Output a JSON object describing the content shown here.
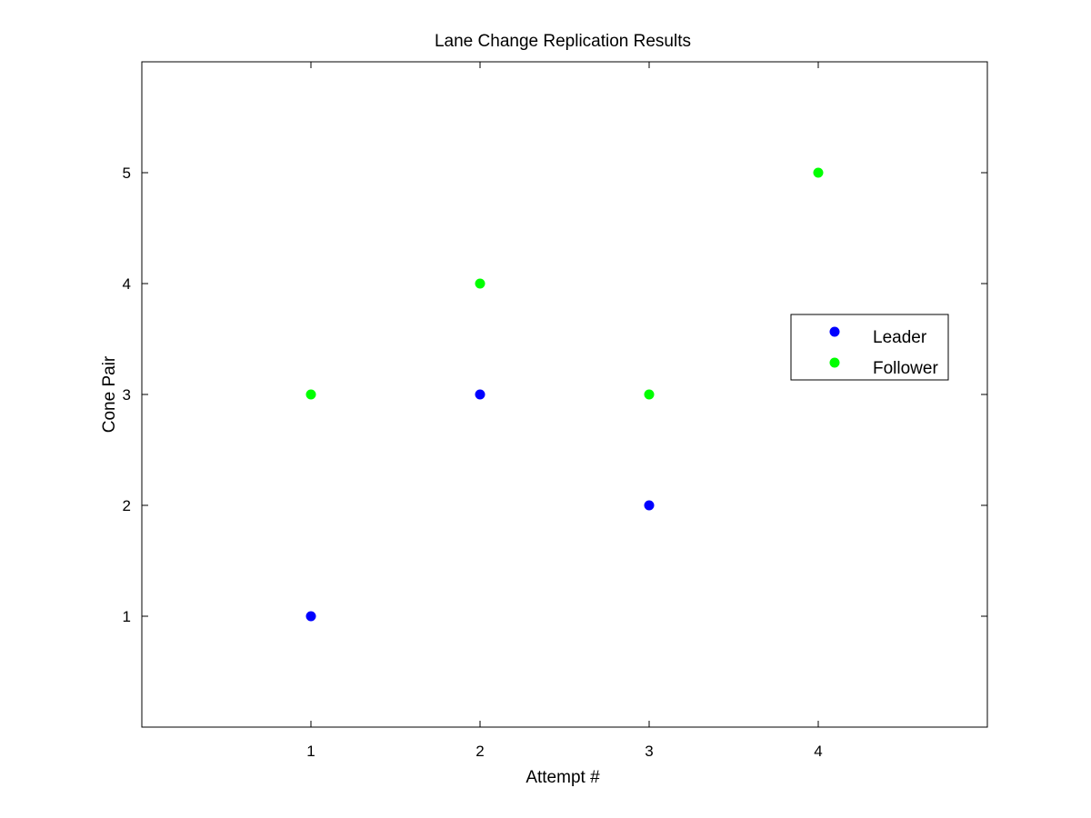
{
  "chart_data": {
    "type": "scatter",
    "title": "Lane Change Replication Results",
    "xlabel": "Attempt #",
    "ylabel": "Cone Pair",
    "xlim": [
      0,
      5
    ],
    "ylim": [
      0,
      6
    ],
    "xticks": [
      1,
      2,
      3,
      4
    ],
    "yticks": [
      1,
      2,
      3,
      4,
      5
    ],
    "grid": false,
    "legend_position": "right",
    "series": [
      {
        "name": "Leader",
        "color": "#0000ff",
        "x": [
          1,
          2,
          3
        ],
        "y": [
          1,
          3,
          2
        ]
      },
      {
        "name": "Follower",
        "color": "#00ff00",
        "x": [
          1,
          2,
          3,
          4
        ],
        "y": [
          3,
          4,
          3,
          5
        ]
      }
    ]
  }
}
